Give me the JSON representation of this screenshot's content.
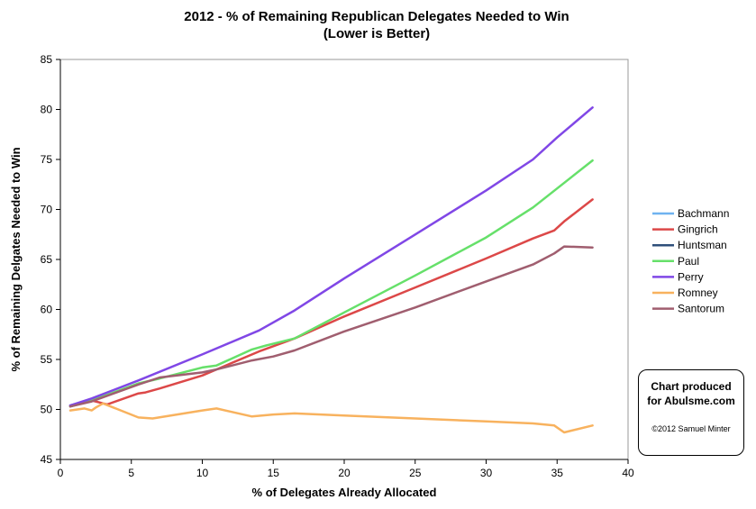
{
  "chart_data": {
    "type": "line",
    "title": "2012 - % of Remaining Republican Delegates Needed to Win",
    "subtitle": "(Lower is Better)",
    "xlabel": "% of Delegates Already Allocated",
    "ylabel": "% of Remaining Delgates Needed to Win",
    "xlim": [
      0,
      40
    ],
    "ylim": [
      45,
      85
    ],
    "xticks": [
      0,
      5,
      10,
      15,
      20,
      25,
      30,
      35,
      40
    ],
    "yticks": [
      45,
      50,
      55,
      60,
      65,
      70,
      75,
      80,
      85
    ],
    "grid": false,
    "legend_position": "right",
    "series": [
      {
        "name": "Bachmann",
        "color": "#6fb3f0",
        "points": []
      },
      {
        "name": "Gingrich",
        "color": "#dc4848",
        "points": [
          [
            0.7,
            50.3
          ],
          [
            2.2,
            50.9
          ],
          [
            3.3,
            50.5
          ],
          [
            5.5,
            51.6
          ],
          [
            6.0,
            51.7
          ],
          [
            7.0,
            52.1
          ],
          [
            10.0,
            53.4
          ],
          [
            11.0,
            54.0
          ],
          [
            14.0,
            55.8
          ],
          [
            16.5,
            57.1
          ],
          [
            20.0,
            59.3
          ],
          [
            25.0,
            62.2
          ],
          [
            30.0,
            65.1
          ],
          [
            33.3,
            67.1
          ],
          [
            34.8,
            67.9
          ],
          [
            35.5,
            68.8
          ],
          [
            37.5,
            71.0
          ]
        ]
      },
      {
        "name": "Huntsman",
        "color": "#2f4f7a",
        "points": [
          [
            0.7,
            50.4
          ],
          [
            2.2,
            51.0
          ]
        ]
      },
      {
        "name": "Paul",
        "color": "#66e06a",
        "points": [
          [
            0.7,
            50.3
          ],
          [
            2.2,
            50.9
          ],
          [
            5.5,
            52.6
          ],
          [
            7.0,
            53.1
          ],
          [
            10.0,
            54.2
          ],
          [
            11.0,
            54.4
          ],
          [
            13.5,
            56.0
          ],
          [
            14.5,
            56.4
          ],
          [
            16.5,
            57.1
          ],
          [
            20.0,
            59.7
          ],
          [
            25.0,
            63.4
          ],
          [
            30.0,
            67.2
          ],
          [
            33.3,
            70.2
          ],
          [
            37.5,
            74.9
          ]
        ]
      },
      {
        "name": "Perry",
        "color": "#8047e6",
        "points": [
          [
            0.7,
            50.4
          ],
          [
            2.2,
            51.1
          ],
          [
            5.5,
            52.9
          ],
          [
            10.0,
            55.5
          ],
          [
            14.0,
            57.9
          ],
          [
            16.5,
            59.9
          ],
          [
            20.0,
            63.1
          ],
          [
            25.0,
            67.5
          ],
          [
            30.0,
            71.9
          ],
          [
            33.3,
            75.0
          ],
          [
            35.0,
            77.2
          ],
          [
            37.5,
            80.2
          ]
        ]
      },
      {
        "name": "Romney",
        "color": "#f8b25e",
        "points": [
          [
            0.7,
            49.9
          ],
          [
            1.7,
            50.1
          ],
          [
            2.2,
            49.9
          ],
          [
            2.5,
            50.2
          ],
          [
            3.0,
            50.6
          ],
          [
            5.5,
            49.2
          ],
          [
            6.5,
            49.1
          ],
          [
            10.0,
            49.9
          ],
          [
            11.0,
            50.1
          ],
          [
            13.5,
            49.3
          ],
          [
            15.0,
            49.5
          ],
          [
            16.5,
            49.6
          ],
          [
            20.0,
            49.4
          ],
          [
            25.0,
            49.1
          ],
          [
            30.0,
            48.8
          ],
          [
            33.3,
            48.6
          ],
          [
            34.8,
            48.4
          ],
          [
            35.5,
            47.7
          ],
          [
            37.5,
            48.4
          ]
        ]
      },
      {
        "name": "Santorum",
        "color": "#a05e6f",
        "points": [
          [
            0.7,
            50.3
          ],
          [
            2.2,
            50.8
          ],
          [
            5.5,
            52.5
          ],
          [
            7.0,
            53.2
          ],
          [
            10.0,
            53.7
          ],
          [
            11.0,
            54.0
          ],
          [
            13.5,
            54.9
          ],
          [
            15.0,
            55.3
          ],
          [
            16.5,
            55.9
          ],
          [
            20.0,
            57.8
          ],
          [
            25.0,
            60.2
          ],
          [
            30.0,
            62.8
          ],
          [
            33.3,
            64.5
          ],
          [
            34.8,
            65.6
          ],
          [
            35.5,
            66.3
          ],
          [
            37.5,
            66.2
          ]
        ]
      }
    ]
  },
  "credit": {
    "line1": "Chart produced",
    "line2": "for Abulsme.com",
    "copyright": "©2012 Samuel Minter"
  }
}
